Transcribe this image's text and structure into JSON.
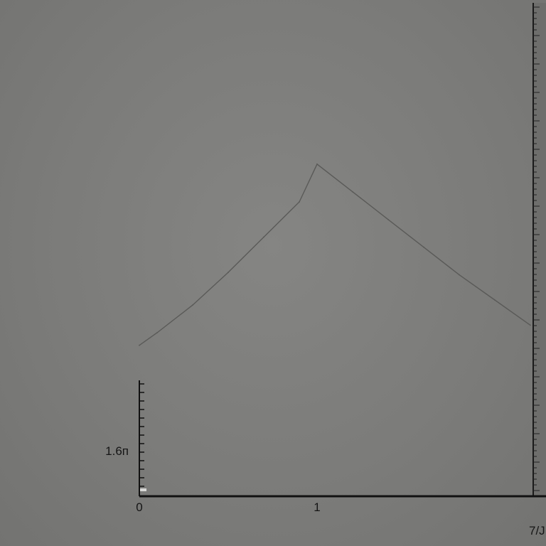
{
  "chart_data": {
    "type": "line",
    "title": "",
    "xlabel": "",
    "ylabel": "",
    "x_tick_labels": [
      "0",
      "1"
    ],
    "y_tick_label": "1.6п",
    "corner_label": "7/J",
    "xlim": [
      0,
      2.2
    ],
    "ylim": [
      0,
      1.95
    ],
    "series": [
      {
        "x": [
          0,
          0.1,
          0.3,
          0.5,
          0.7,
          0.9,
          1.0,
          1.2,
          1.4,
          1.6,
          1.8,
          2.0,
          2.2
        ],
        "y": [
          0.6,
          0.65,
          0.76,
          0.89,
          1.03,
          1.17,
          1.32,
          1.21,
          1.1,
          0.99,
          0.88,
          0.78,
          0.68
        ]
      }
    ],
    "grid": false,
    "colors": {
      "background": "#7c7c7a",
      "line": "#5a5a58",
      "axis": "#111111"
    }
  }
}
